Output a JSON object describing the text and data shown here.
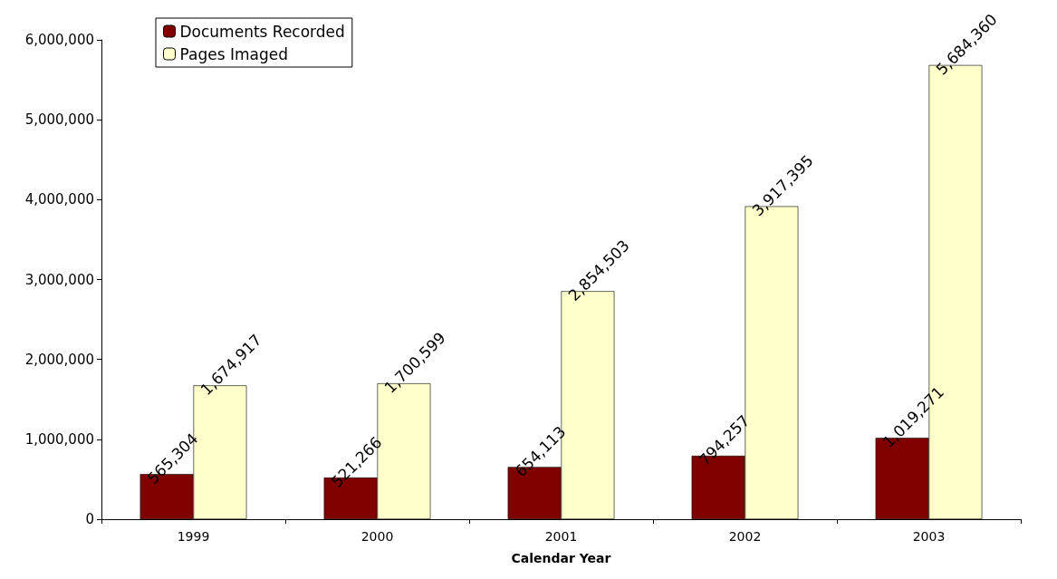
{
  "chart_data": {
    "type": "bar",
    "xlabel": "Calendar Year",
    "categories": [
      "1999",
      "2000",
      "2001",
      "2002",
      "2003"
    ],
    "series": [
      {
        "name": "Documents Recorded",
        "color": "#800000",
        "values": [
          565304,
          521266,
          654113,
          794257,
          1019271
        ],
        "value_labels": [
          "565,304",
          "521,266",
          "654,113",
          "794,257",
          "1,019,271"
        ]
      },
      {
        "name": "Pages Imaged",
        "color": "#ffffcc",
        "values": [
          1674917,
          1700599,
          2854503,
          3917395,
          5684360
        ],
        "value_labels": [
          "1,674,917",
          "1,700,599",
          "2,854,503",
          "3,917,395",
          "5,684,360"
        ]
      }
    ],
    "ylim": [
      0,
      6000000
    ],
    "yticks": [
      {
        "value": 0,
        "label": "0"
      },
      {
        "value": 1000000,
        "label": "1,000,000"
      },
      {
        "value": 2000000,
        "label": "2,000,000"
      },
      {
        "value": 3000000,
        "label": "3,000,000"
      },
      {
        "value": 4000000,
        "label": "4,000,000"
      },
      {
        "value": 5000000,
        "label": "5,000,000"
      },
      {
        "value": 6000000,
        "label": "6,000,000"
      }
    ],
    "grid": false,
    "legend": "top left"
  }
}
